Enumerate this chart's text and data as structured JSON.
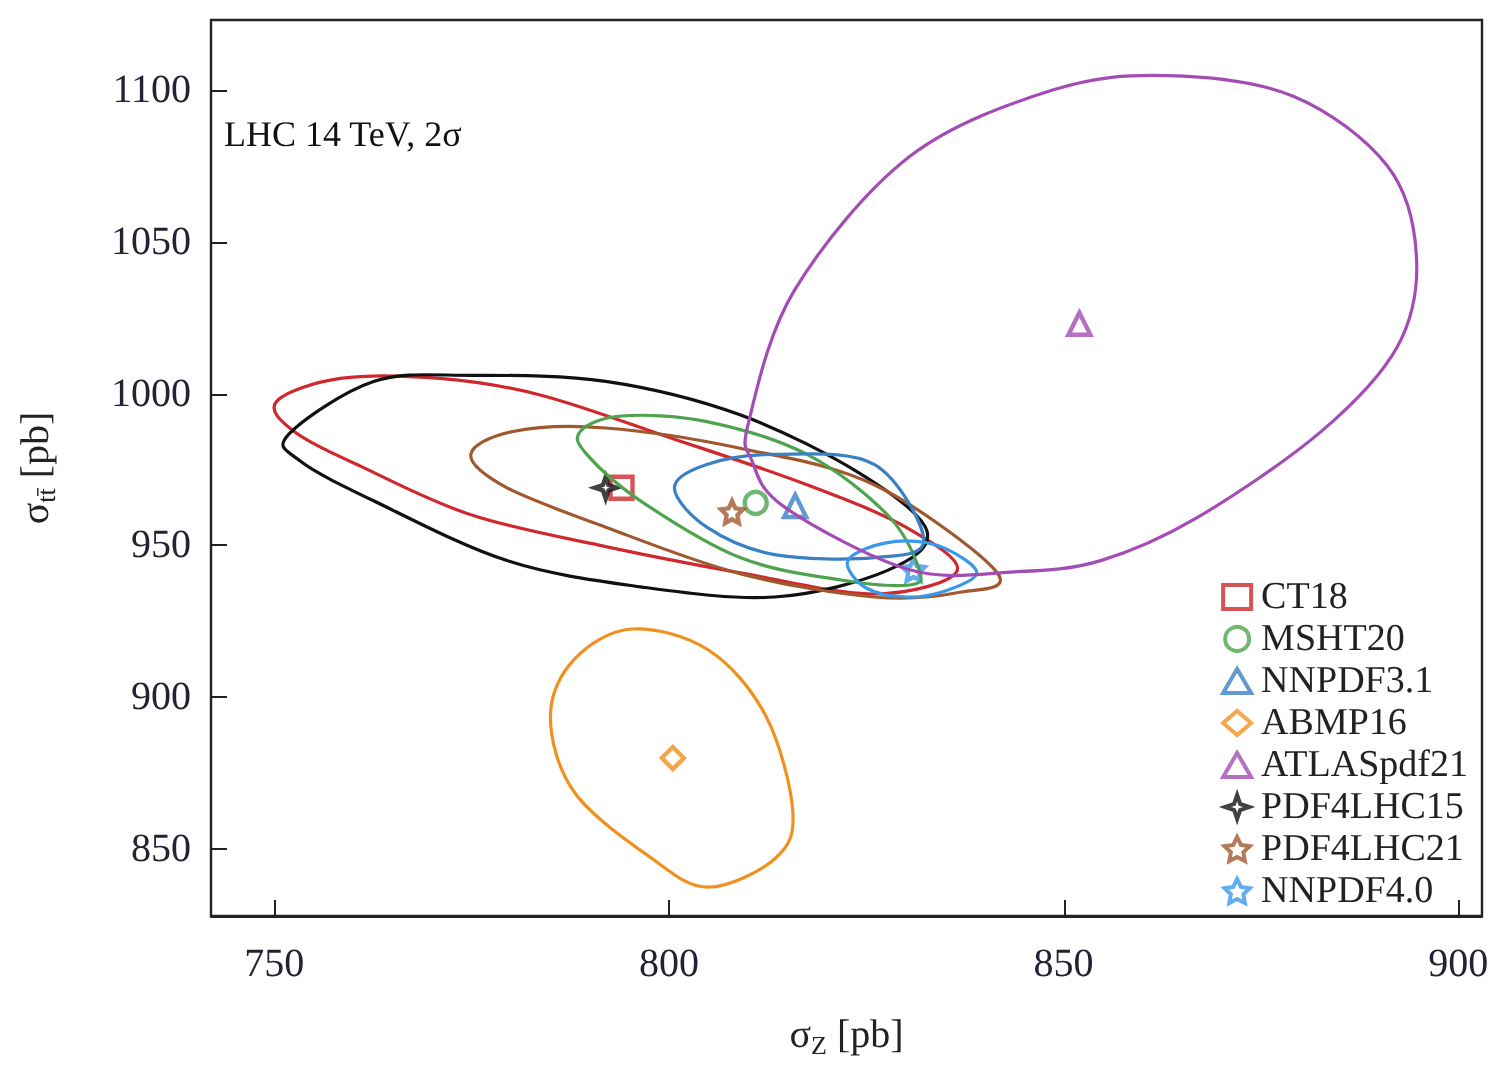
{
  "chart_data": {
    "type": "scatter",
    "xlabel": "σ$_{Z}$ [pb]",
    "ylabel": "σ$_{tt̄}$ [pb]",
    "annotations": [
      "LHC 14 TeV, 2σ"
    ],
    "xlim": [
      742,
      903
    ],
    "ylim": [
      828,
      1123
    ],
    "xticks": [
      750,
      800,
      850,
      900
    ],
    "yticks": [
      850,
      900,
      950,
      1000,
      1050,
      1100
    ],
    "grid": false,
    "legend": "right",
    "series": [
      {
        "name": "CT18",
        "color": "#d0282c",
        "marker": "square",
        "x": [
          794
        ],
        "values": [
          969
        ]
      },
      {
        "name": "MSHT20",
        "color": "#4ea44e",
        "marker": "circle",
        "x": [
          811
        ],
        "values": [
          964
        ]
      },
      {
        "name": "NNPDF3.1",
        "color": "#3a80c4",
        "marker": "triangle",
        "x": [
          816
        ],
        "values": [
          963
        ]
      },
      {
        "name": "ABMP16",
        "color": "#f0901e",
        "marker": "diamond",
        "x": [
          800.5
        ],
        "values": [
          880
        ]
      },
      {
        "name": "ATLASpdf21",
        "color": "#a24cb4",
        "marker": "triangle",
        "x": [
          852
        ],
        "values": [
          1023
        ]
      },
      {
        "name": "PDF4LHC15",
        "color": "#111111",
        "marker": "cross",
        "x": [
          792
        ],
        "values": [
          969
        ]
      },
      {
        "name": "PDF4LHC21",
        "color": "#a0582e",
        "marker": "star",
        "x": [
          808
        ],
        "values": [
          961
        ]
      },
      {
        "name": "NNPDF4.0",
        "color": "#3898ec",
        "marker": "star",
        "x": [
          831
        ],
        "values": [
          942
        ]
      }
    ]
  }
}
